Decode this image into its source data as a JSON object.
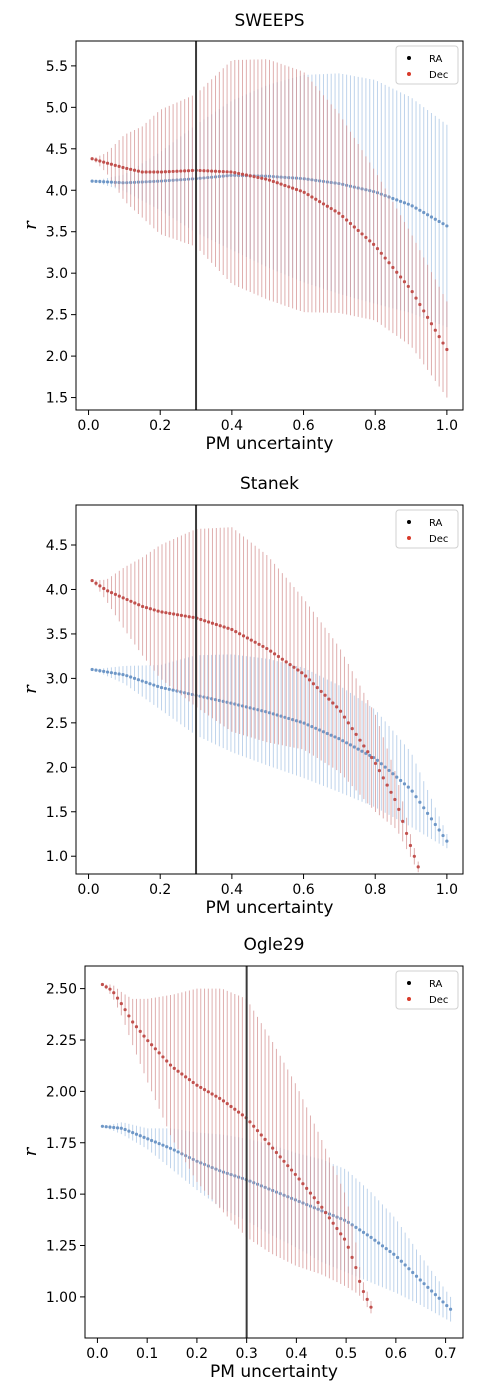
{
  "chart_data": [
    {
      "type": "scatter",
      "title": "SWEEPS",
      "xlabel": "PM uncertainty",
      "ylabel": "r",
      "xlim": [
        -0.035,
        1.045
      ],
      "ylim": [
        1.35,
        5.8
      ],
      "xticks": [
        "0.0",
        "0.2",
        "0.4",
        "0.6",
        "0.8",
        "1.0"
      ],
      "yticks": [
        "1.5",
        "2.0",
        "2.5",
        "3.0",
        "3.5",
        "4.0",
        "4.5",
        "5.0",
        "5.5"
      ],
      "vline": 0.3,
      "grid": false,
      "legend": {
        "position": "top-right",
        "entries": [
          "RA",
          "Dec"
        ]
      },
      "series": [
        {
          "name": "RA",
          "color": "#6e97c7",
          "err_color": "#a8c4e4",
          "x": [
            0.01,
            0.1,
            0.2,
            0.3,
            0.4,
            0.5,
            0.6,
            0.7,
            0.8,
            0.9,
            1.0
          ],
          "y": [
            4.11,
            4.09,
            4.11,
            4.14,
            4.18,
            4.17,
            4.14,
            4.08,
            3.98,
            3.82,
            3.57
          ],
          "err": [
            0.0,
            0.1,
            0.35,
            0.65,
            0.9,
            1.1,
            1.25,
            1.33,
            1.35,
            1.3,
            1.22
          ]
        },
        {
          "name": "Dec",
          "color": "#c1504d",
          "err_color": "#d49393",
          "x": [
            0.01,
            0.05,
            0.1,
            0.15,
            0.2,
            0.3,
            0.4,
            0.5,
            0.6,
            0.7,
            0.8,
            0.9,
            1.0
          ],
          "y": [
            4.38,
            4.33,
            4.27,
            4.22,
            4.22,
            4.24,
            4.22,
            4.13,
            3.98,
            3.72,
            3.33,
            2.8,
            2.08
          ],
          "err": [
            0.0,
            0.12,
            0.4,
            0.55,
            0.75,
            0.92,
            1.35,
            1.45,
            1.45,
            1.2,
            0.9,
            0.68,
            0.58
          ]
        }
      ]
    },
    {
      "type": "scatter",
      "title": "Stanek",
      "xlabel": "PM uncertainty",
      "ylabel": "r",
      "xlim": [
        -0.035,
        1.045
      ],
      "ylim": [
        0.8,
        4.95
      ],
      "xticks": [
        "0.0",
        "0.2",
        "0.4",
        "0.6",
        "0.8",
        "1.0"
      ],
      "yticks": [
        "1.0",
        "1.5",
        "2.0",
        "2.5",
        "3.0",
        "3.5",
        "4.0",
        "4.5"
      ],
      "vline": 0.3,
      "grid": false,
      "legend": {
        "position": "top-right",
        "entries": [
          "RA",
          "Dec"
        ]
      },
      "series": [
        {
          "name": "RA",
          "color": "#6e97c7",
          "err_color": "#a8c4e4",
          "x": [
            0.01,
            0.1,
            0.2,
            0.3,
            0.4,
            0.5,
            0.6,
            0.7,
            0.8,
            0.9,
            1.0
          ],
          "y": [
            3.1,
            3.04,
            2.9,
            2.81,
            2.72,
            2.62,
            2.5,
            2.32,
            2.1,
            1.75,
            1.17
          ],
          "err": [
            0.0,
            0.1,
            0.25,
            0.45,
            0.55,
            0.6,
            0.62,
            0.6,
            0.55,
            0.42,
            0.08
          ]
        },
        {
          "name": "Dec",
          "color": "#c1504d",
          "err_color": "#d49393",
          "x": [
            0.01,
            0.05,
            0.1,
            0.15,
            0.2,
            0.3,
            0.4,
            0.5,
            0.6,
            0.7,
            0.8,
            0.86,
            0.9,
            0.92
          ],
          "y": [
            4.1,
            3.99,
            3.9,
            3.81,
            3.75,
            3.68,
            3.55,
            3.33,
            3.05,
            2.65,
            2.05,
            1.6,
            1.1,
            0.88
          ],
          "err": [
            0.0,
            0.12,
            0.35,
            0.55,
            0.75,
            1.0,
            1.15,
            1.05,
            0.85,
            0.7,
            0.55,
            0.3,
            0.12,
            0.06
          ]
        }
      ]
    },
    {
      "type": "scatter",
      "title": "Ogle29",
      "xlabel": "PM uncertainty",
      "ylabel": "r",
      "xlim": [
        -0.025,
        0.735
      ],
      "ylim": [
        0.8,
        2.61
      ],
      "xticks": [
        "0.0",
        "0.1",
        "0.2",
        "0.3",
        "0.4",
        "0.5",
        "0.6",
        "0.7"
      ],
      "yticks": [
        "1.00",
        "1.25",
        "1.50",
        "1.75",
        "2.00",
        "2.25",
        "2.50"
      ],
      "vline": 0.3,
      "grid": false,
      "legend": {
        "position": "top-right",
        "entries": [
          "RA",
          "Dec"
        ]
      },
      "series": [
        {
          "name": "RA",
          "color": "#6e97c7",
          "err_color": "#a8c4e4",
          "x": [
            0.01,
            0.05,
            0.1,
            0.15,
            0.2,
            0.25,
            0.3,
            0.35,
            0.4,
            0.45,
            0.5,
            0.55,
            0.6,
            0.65,
            0.71
          ],
          "y": [
            1.83,
            1.82,
            1.77,
            1.72,
            1.66,
            1.61,
            1.57,
            1.52,
            1.47,
            1.42,
            1.37,
            1.29,
            1.2,
            1.08,
            0.94
          ],
          "err": [
            0.0,
            0.03,
            0.05,
            0.1,
            0.14,
            0.18,
            0.2,
            0.22,
            0.23,
            0.25,
            0.25,
            0.22,
            0.18,
            0.12,
            0.06
          ]
        },
        {
          "name": "Dec",
          "color": "#c1504d",
          "err_color": "#d49393",
          "x": [
            0.01,
            0.03,
            0.05,
            0.07,
            0.1,
            0.15,
            0.2,
            0.25,
            0.3,
            0.35,
            0.4,
            0.45,
            0.5,
            0.52,
            0.53,
            0.55
          ],
          "y": [
            2.52,
            2.49,
            2.42,
            2.34,
            2.25,
            2.12,
            2.03,
            1.96,
            1.87,
            1.73,
            1.59,
            1.44,
            1.27,
            1.14,
            1.05,
            0.95
          ],
          "err": [
            0.0,
            0.03,
            0.06,
            0.11,
            0.2,
            0.35,
            0.47,
            0.54,
            0.58,
            0.52,
            0.44,
            0.33,
            0.22,
            0.12,
            0.05,
            0.03
          ]
        }
      ]
    }
  ]
}
